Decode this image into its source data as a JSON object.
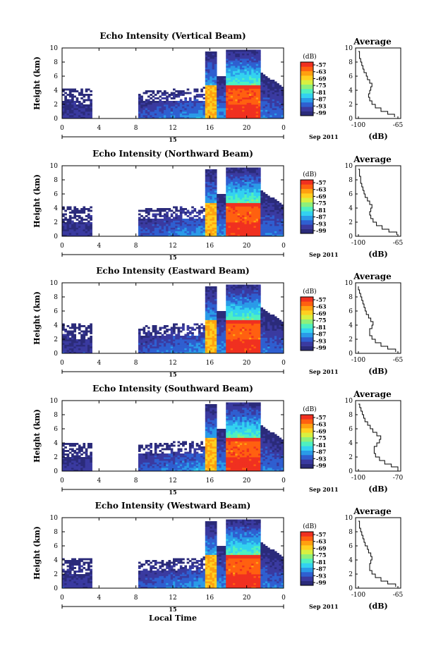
{
  "figure": {
    "xlabel": "Local Time",
    "date_label": "Sep 2011",
    "day_label": "15",
    "avg_title": "Average",
    "avg_xlabel": "(dB)",
    "ylabel": "Height (km)",
    "colorbar_unit": "(dB)",
    "colorbar_ticks": [
      "-57",
      "-63",
      "-69",
      "-75",
      "-81",
      "-87",
      "-93",
      "-99"
    ],
    "colors": [
      "#2b2b7a",
      "#3a3aa0",
      "#2f5fd0",
      "#2a9be8",
      "#33d2f0",
      "#4ff0c0",
      "#8ef07a",
      "#d8f040",
      "#ffd020",
      "#ffa010",
      "#ff6010",
      "#f03020"
    ]
  },
  "chart_data": [
    {
      "type": "heatmap",
      "title": "Echo Intensity (Vertical Beam)",
      "x_ticks": [
        "0",
        "4",
        "8",
        "12",
        "16",
        "20",
        "0"
      ],
      "y_ticks": [
        "0",
        "2",
        "4",
        "6",
        "8",
        "10"
      ],
      "xlim": [
        0,
        24
      ],
      "ylim": [
        0,
        10
      ],
      "colorbar_range": [
        -99,
        -57
      ],
      "avg": {
        "title": "Average",
        "xlabel": "(dB)",
        "x_ticks": [
          "-100",
          "-65"
        ],
        "xlim": [
          -100,
          -65
        ],
        "y_ticks": [
          "0",
          "2",
          "4",
          "6",
          "8",
          "10"
        ],
        "height_km": [
          0.2,
          0.6,
          1.0,
          1.5,
          2.0,
          2.5,
          3.0,
          3.5,
          4.0,
          4.5,
          5.0,
          5.5,
          6.0,
          6.5,
          7.0,
          7.5,
          8.0,
          8.5,
          9.0,
          9.5
        ],
        "db": [
          -68,
          -74,
          -80,
          -85,
          -88,
          -90,
          -91,
          -90,
          -89,
          -88,
          -90,
          -92,
          -93,
          -95,
          -96,
          -97,
          -98,
          -99,
          -99,
          -100
        ]
      }
    },
    {
      "type": "heatmap",
      "title": "Echo Intensity (Northward Beam)",
      "x_ticks": [
        "0",
        "4",
        "8",
        "12",
        "16",
        "20",
        "0"
      ],
      "y_ticks": [
        "0",
        "2",
        "4",
        "6",
        "8",
        "10"
      ],
      "xlim": [
        0,
        24
      ],
      "ylim": [
        0,
        10
      ],
      "colorbar_range": [
        -99,
        -57
      ],
      "avg": {
        "title": "Average",
        "xlabel": "(dB)",
        "x_ticks": [
          "-100",
          "-65"
        ],
        "xlim": [
          -100,
          -65
        ],
        "y_ticks": [
          "0",
          "2",
          "4",
          "6",
          "8",
          "10"
        ],
        "height_km": [
          0.2,
          0.6,
          1.0,
          1.5,
          2.0,
          2.5,
          3.0,
          3.5,
          4.0,
          4.5,
          5.0,
          5.5,
          6.0,
          6.5,
          7.0,
          7.5,
          8.0,
          8.5,
          9.0,
          9.5
        ],
        "db": [
          -66,
          -73,
          -79,
          -84,
          -87,
          -89,
          -90,
          -89,
          -88,
          -90,
          -92,
          -94,
          -95,
          -96,
          -97,
          -98,
          -98,
          -99,
          -99,
          -100
        ]
      }
    },
    {
      "type": "heatmap",
      "title": "Echo Intensity (Eastward Beam)",
      "x_ticks": [
        "0",
        "4",
        "8",
        "12",
        "16",
        "20",
        "0"
      ],
      "y_ticks": [
        "0",
        "2",
        "4",
        "6",
        "8",
        "10"
      ],
      "xlim": [
        0,
        24
      ],
      "ylim": [
        0,
        10
      ],
      "colorbar_range": [
        -99,
        -57
      ],
      "avg": {
        "title": "Average",
        "xlabel": "(dB)",
        "x_ticks": [
          "-100",
          "-65"
        ],
        "xlim": [
          -100,
          -65
        ],
        "y_ticks": [
          "0",
          "2",
          "4",
          "6",
          "8",
          "10"
        ],
        "height_km": [
          0.2,
          0.6,
          1.0,
          1.5,
          2.0,
          2.5,
          3.0,
          3.5,
          4.0,
          4.5,
          5.0,
          5.5,
          6.0,
          6.5,
          7.0,
          7.5,
          8.0,
          8.5,
          9.0,
          9.5
        ],
        "db": [
          -67,
          -74,
          -80,
          -85,
          -88,
          -90,
          -90,
          -88,
          -87,
          -89,
          -91,
          -93,
          -94,
          -95,
          -96,
          -97,
          -98,
          -99,
          -100,
          -100
        ]
      }
    },
    {
      "type": "heatmap",
      "title": "Echo Intensity (Southward Beam)",
      "x_ticks": [
        "0",
        "4",
        "8",
        "12",
        "16",
        "20",
        "0"
      ],
      "y_ticks": [
        "0",
        "2",
        "4",
        "6",
        "8",
        "10"
      ],
      "xlim": [
        0,
        24
      ],
      "ylim": [
        0,
        10
      ],
      "colorbar_range": [
        -99,
        -57
      ],
      "avg": {
        "title": "Average",
        "xlabel": "(dB)",
        "x_ticks": [
          "-100",
          "-70"
        ],
        "xlim": [
          -100,
          -70
        ],
        "y_ticks": [
          "0",
          "2",
          "4",
          "6",
          "8",
          "10"
        ],
        "height_km": [
          0.2,
          0.6,
          1.0,
          1.5,
          2.0,
          2.5,
          3.0,
          3.5,
          4.0,
          4.5,
          5.0,
          5.5,
          6.0,
          6.5,
          7.0,
          7.5,
          8.0,
          8.5,
          9.0,
          9.5
        ],
        "db": [
          -70,
          -75,
          -80,
          -84,
          -87,
          -88,
          -88,
          -86,
          -84,
          -83,
          -86,
          -89,
          -91,
          -93,
          -95,
          -96,
          -97,
          -98,
          -99,
          -100
        ]
      }
    },
    {
      "type": "heatmap",
      "title": "Echo Intensity (Westward Beam)",
      "x_ticks": [
        "0",
        "4",
        "8",
        "12",
        "16",
        "20",
        "0"
      ],
      "y_ticks": [
        "0",
        "2",
        "4",
        "6",
        "8",
        "10"
      ],
      "xlim": [
        0,
        24
      ],
      "ylim": [
        0,
        10
      ],
      "colorbar_range": [
        -99,
        -57
      ],
      "avg": {
        "title": "Average",
        "xlabel": "(dB)",
        "x_ticks": [
          "-100",
          "-65"
        ],
        "xlim": [
          -100,
          -65
        ],
        "y_ticks": [
          "0",
          "2",
          "4",
          "6",
          "8",
          "10"
        ],
        "height_km": [
          0.2,
          0.6,
          1.0,
          1.5,
          2.0,
          2.5,
          3.0,
          3.5,
          4.0,
          4.5,
          5.0,
          5.5,
          6.0,
          6.5,
          7.0,
          7.5,
          8.0,
          8.5,
          9.0,
          9.5
        ],
        "db": [
          -67,
          -74,
          -80,
          -85,
          -88,
          -90,
          -90,
          -89,
          -88,
          -89,
          -91,
          -92,
          -94,
          -95,
          -96,
          -97,
          -98,
          -99,
          -99,
          -100
        ]
      }
    }
  ]
}
